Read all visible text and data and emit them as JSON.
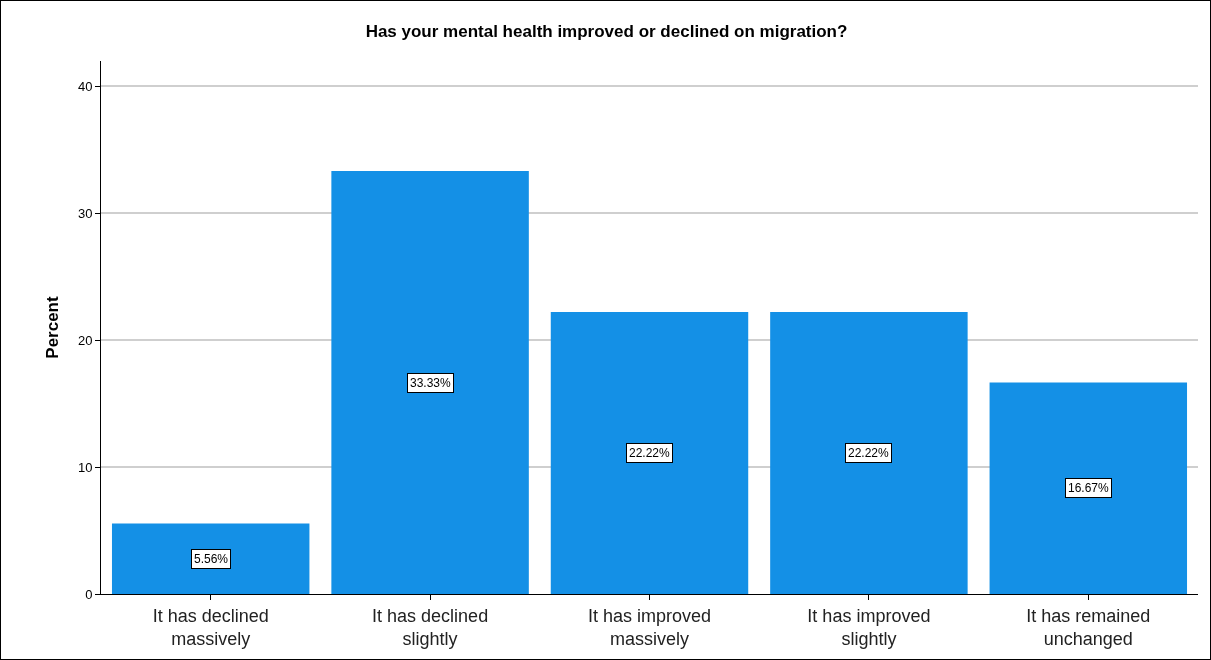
{
  "chart_data": {
    "type": "bar",
    "title": "Has your mental health improved or declined on migration?",
    "ylabel": "Percent",
    "categories": [
      "It has declined massively",
      "It has declined slightly",
      "It has improved massively",
      "It has improved slightly",
      "It has remained unchanged"
    ],
    "values": [
      5.56,
      33.33,
      22.22,
      22.22,
      16.67
    ],
    "value_labels": [
      "5.56%",
      "33.33%",
      "22.22%",
      "22.22%",
      "16.67%"
    ],
    "color": "#1490e6",
    "ylim": [
      0,
      42
    ],
    "yticks": [
      0,
      10,
      20,
      30,
      40
    ],
    "grid": "y"
  }
}
